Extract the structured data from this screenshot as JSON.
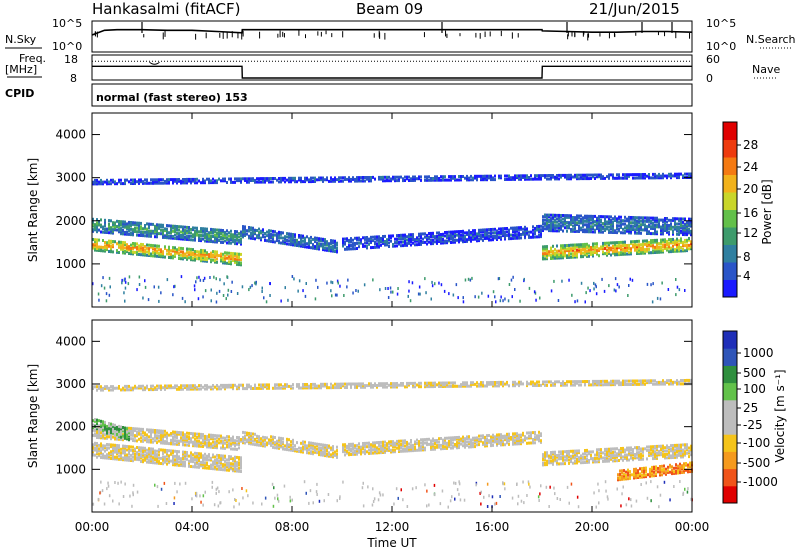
{
  "header": {
    "station": "Hankasalmi (fitACF)",
    "beam": "Beam 09",
    "date": "21/Jun/2015"
  },
  "panel_labels": {
    "nsky": "N.Sky",
    "nsearch": "N.Search",
    "freq": "Freq.",
    "freq_unit": "[MHz]",
    "nave": "Nave",
    "cpid": "CPID",
    "cpid_text": "normal (fast stereo) 153"
  },
  "colors": {
    "power": [
      "#1b1bff",
      "#2a55c8",
      "#2f7fa0",
      "#3d9b6c",
      "#63c04a",
      "#c9d62a",
      "#f2b21b",
      "#f47a12",
      "#ee3b0e",
      "#e00000"
    ],
    "velocity": [
      "#e00000",
      "#f0541a",
      "#f59a1e",
      "#f5c41a",
      "#bdbdbd",
      "#bdbdbd",
      "#62c24a",
      "#2f8f3e",
      "#2f55b8",
      "#1f2fb8"
    ]
  },
  "chart_data": [
    {
      "type": "line",
      "name": "nsky-nsearch",
      "ylabel_left": "N.Sky",
      "ylabel_right": "N.Search",
      "left_ticks": [
        "10^5",
        "10^0"
      ],
      "right_ticks": [
        "10^5",
        "10^0"
      ],
      "x_hours": [
        0,
        0.5,
        1,
        2,
        3,
        4,
        5,
        6,
        6.01,
        8,
        10,
        12,
        14,
        16,
        18,
        18.01,
        19,
        20,
        21,
        22,
        23,
        24
      ],
      "nsky_level": [
        0.55,
        0.7,
        0.72,
        0.72,
        0.7,
        0.7,
        0.66,
        0.62,
        0.72,
        0.72,
        0.72,
        0.72,
        0.72,
        0.72,
        0.72,
        0.68,
        0.66,
        0.64,
        0.64,
        0.66,
        0.66,
        0.64
      ]
    },
    {
      "type": "line",
      "name": "freq-nave",
      "ylabel_left": "Freq. [MHz]",
      "ylabel_right": "Nave",
      "left_ticks": [
        "18",
        "8"
      ],
      "right_ticks": [
        "60",
        "0"
      ],
      "x_hours": [
        0,
        6,
        6.01,
        18,
        18.01,
        24
      ],
      "freq_step": [
        0.45,
        0.45,
        0.92,
        0.92,
        0.45,
        0.45
      ],
      "nave_level": 0.25
    },
    {
      "type": "heatmap",
      "name": "power",
      "ylabel": "Slant Range [km]",
      "colorbar_label": "Power [dB]",
      "colorbar_ticks": [
        "4",
        "8",
        "12",
        "16",
        "20",
        "24",
        "28"
      ],
      "yticks": [
        "1000",
        "2000",
        "3000",
        "4000"
      ],
      "ylim": [
        0,
        4500
      ],
      "xlim_hours": [
        0,
        24
      ],
      "bands": [
        {
          "start_hour": 0,
          "end_hour": 6,
          "center_km": [
            1500,
            1150
          ],
          "width_km": 280,
          "value": 7
        },
        {
          "start_hour": 0,
          "end_hour": 6,
          "center_km": [
            1950,
            1650
          ],
          "width_km": 320,
          "value": 3
        },
        {
          "start_hour": 6,
          "end_hour": 9.8,
          "center_km": [
            1800,
            1450
          ],
          "width_km": 280,
          "value": 2
        },
        {
          "start_hour": 10,
          "end_hour": 18,
          "center_km": [
            1500,
            1800
          ],
          "width_km": 260,
          "value": 1
        },
        {
          "start_hour": 18,
          "end_hour": 24,
          "center_km": [
            1300,
            1500
          ],
          "width_km": 300,
          "value": 7
        },
        {
          "start_hour": 18,
          "end_hour": 24,
          "center_km": [
            2000,
            1900
          ],
          "width_km": 380,
          "value": 2
        },
        {
          "start_hour": 0,
          "end_hour": 24,
          "center_km": [
            2950,
            3100
          ],
          "width_km": 120,
          "value": 1
        }
      ]
    },
    {
      "type": "heatmap",
      "name": "velocity",
      "ylabel": "Slant Range [km]",
      "colorbar_label": "Velocity [m s⁻¹]",
      "colorbar_ticks": [
        "1000",
        "500",
        "100",
        "25",
        "-25",
        "-100",
        "-500",
        "-1000"
      ],
      "yticks": [
        "1000",
        "2000",
        "3000",
        "4000"
      ],
      "ylim": [
        0,
        4500
      ],
      "xlim_hours": [
        0,
        24
      ],
      "xticks": [
        "00:00",
        "04:00",
        "08:00",
        "12:00",
        "16:00",
        "20:00",
        "00:00"
      ],
      "xlabel": "Time UT",
      "bands": [
        {
          "start_hour": 0,
          "end_hour": 6,
          "center_km": [
            1500,
            1150
          ],
          "width_km": 340,
          "value": 4
        },
        {
          "start_hour": 0,
          "end_hour": 6,
          "center_km": [
            1950,
            1650
          ],
          "width_km": 320,
          "value": 4
        },
        {
          "start_hour": 0,
          "end_hour": 1.5,
          "center_km": [
            2100,
            1850
          ],
          "width_km": 250,
          "value": 6
        },
        {
          "start_hour": 6,
          "end_hour": 9.8,
          "center_km": [
            1800,
            1450
          ],
          "width_km": 280,
          "value": 4
        },
        {
          "start_hour": 10,
          "end_hour": 18,
          "center_km": [
            1500,
            1800
          ],
          "width_km": 260,
          "value": 4
        },
        {
          "start_hour": 18,
          "end_hour": 24,
          "center_km": [
            1300,
            1500
          ],
          "width_km": 320,
          "value": 4
        },
        {
          "start_hour": 21,
          "end_hour": 24,
          "center_km": [
            900,
            1100
          ],
          "width_km": 220,
          "value": 2
        },
        {
          "start_hour": 0,
          "end_hour": 24,
          "center_km": [
            2950,
            3100
          ],
          "width_km": 120,
          "value": 4
        }
      ]
    }
  ]
}
